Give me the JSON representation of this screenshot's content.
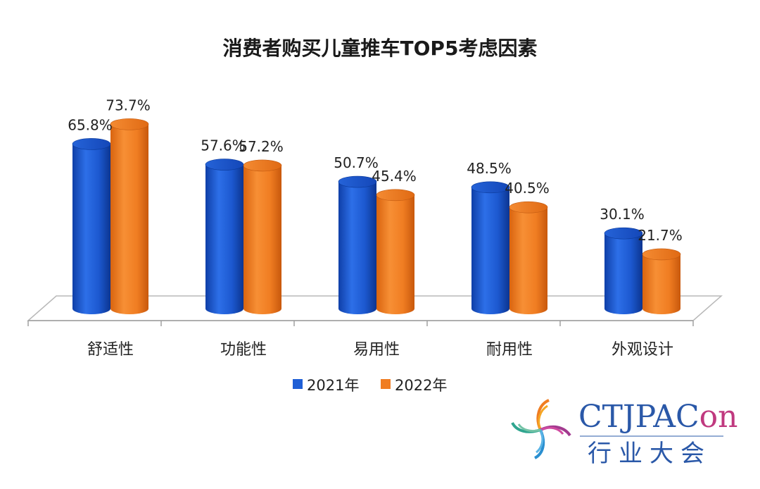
{
  "chart_data": {
    "type": "bar",
    "title": "消费者购买儿童推车TOP5考虑因素",
    "categories": [
      "舒适性",
      "功能性",
      "易用性",
      "耐用性",
      "外观设计"
    ],
    "series": [
      {
        "name": "2021年",
        "values": [
          65.8,
          57.6,
          50.7,
          48.5,
          30.1
        ],
        "labels": [
          "65.8%",
          "57.6%",
          "50.7%",
          "48.5%",
          "30.1%"
        ],
        "color": "#1f5fd6"
      },
      {
        "name": "2022年",
        "values": [
          73.7,
          57.2,
          45.4,
          40.5,
          21.7
        ],
        "labels": [
          "73.7%",
          "57.2%",
          "45.4%",
          "40.5%",
          "21.7%"
        ],
        "color": "#f07d22"
      }
    ],
    "ylim": [
      0,
      80
    ],
    "legend_position": "bottom",
    "grid": false
  },
  "logo": {
    "text_en": "CTJPACon",
    "text_cn": "行业大会"
  }
}
